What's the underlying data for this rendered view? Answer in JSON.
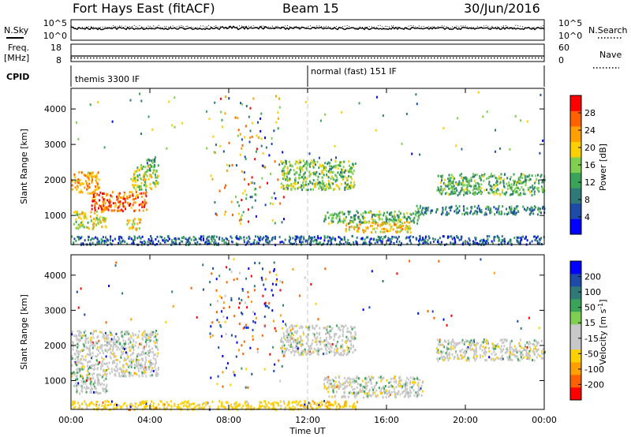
{
  "header": {
    "radar": "Fort Hays East (fitACF)",
    "beam": "Beam 15",
    "date": "30/Jun/2016"
  },
  "noise_panel": {
    "left_label": "N.Sky",
    "right_label": "N.Search",
    "left_ticks": [
      "10^5",
      "10^0"
    ],
    "right_ticks": [
      "10^5",
      "10^0"
    ]
  },
  "freq_panel": {
    "left_label_1": "Freq.",
    "left_label_2": "[MHz]",
    "right_label": "Nave",
    "left_ticks": [
      "18",
      "8"
    ],
    "right_ticks": [
      "60",
      "0"
    ]
  },
  "cpid": {
    "label": "CPID",
    "segments": [
      {
        "name": "themis 3300 IF",
        "start_hour": 0
      },
      {
        "name": "normal (fast) 151 IF",
        "start_hour": 12
      }
    ]
  },
  "x_axis": {
    "label": "Time UT",
    "ticks": [
      "00:00",
      "04:00",
      "08:00",
      "12:00",
      "16:00",
      "20:00",
      "00:00"
    ],
    "range_hours": [
      0,
      24
    ]
  },
  "colors": {
    "noise_trace": "#000000",
    "cpid_divider": "#c8c8c8"
  },
  "chart_data": [
    {
      "type": "heatmap",
      "quantity": "Power",
      "ylabel": "Slant Range [km]",
      "yticks": [
        "1000",
        "2000",
        "3000",
        "4000"
      ],
      "ylim": [
        180,
        4580
      ],
      "xlim": [
        0,
        24
      ],
      "colorbar": {
        "label": "Power [dB]",
        "ticks": [
          "4",
          "8",
          "12",
          "16",
          "20",
          "24",
          "28"
        ],
        "range": [
          0,
          30
        ],
        "colors": [
          "#0000ff",
          "#1e4aa8",
          "#2f7a78",
          "#3aa35a",
          "#7fcf50",
          "#ffd000",
          "#ffa000",
          "#ff6000",
          "#ff0000"
        ]
      },
      "features": [
        {
          "t_start": 0.0,
          "t_end": 1.4,
          "range_low": 1650,
          "range_high": 2250,
          "intensity": 22
        },
        {
          "t_start": 1.0,
          "t_end": 3.8,
          "range_low": 1150,
          "range_high": 1700,
          "intensity": 26
        },
        {
          "t_start": 3.0,
          "t_end": 4.4,
          "range_low": 1750,
          "range_high": 2450,
          "intensity": 16
        },
        {
          "t_start": 0.1,
          "t_end": 1.8,
          "range_low": 650,
          "range_high": 1150,
          "intensity": 18
        },
        {
          "t_start": 2.8,
          "t_end": 3.5,
          "range_low": 600,
          "range_high": 950,
          "intensity": 20
        },
        {
          "t_start": 3.8,
          "t_end": 4.3,
          "range_low": 2250,
          "range_high": 2700,
          "intensity": 10
        },
        {
          "t_start": 10.6,
          "t_end": 14.4,
          "range_low": 1750,
          "range_high": 2600,
          "intensity": 14
        },
        {
          "t_start": 12.8,
          "t_end": 17.8,
          "range_low": 800,
          "range_high": 1150,
          "intensity": 12
        },
        {
          "t_start": 13.8,
          "t_end": 17.2,
          "range_low": 550,
          "range_high": 850,
          "intensity": 20
        },
        {
          "t_start": 18.5,
          "t_end": 24.0,
          "range_low": 1600,
          "range_high": 2200,
          "intensity": 12
        },
        {
          "t_start": 17.5,
          "t_end": 24.0,
          "range_low": 1050,
          "range_high": 1300,
          "intensity": 8
        },
        {
          "t_start": 0.0,
          "t_end": 24.0,
          "range_low": 200,
          "range_high": 450,
          "intensity": 6
        }
      ]
    },
    {
      "type": "heatmap",
      "quantity": "Velocity",
      "ylabel": "Slant Range [km]",
      "yticks": [
        "1000",
        "2000",
        "3000",
        "4000"
      ],
      "ylim": [
        180,
        4580
      ],
      "xlim": [
        0,
        24
      ],
      "colorbar": {
        "label": "Velocity [m s-1]",
        "ticks": [
          "200",
          "100",
          "50",
          "15",
          "-15",
          "-50",
          "-100",
          "-200"
        ],
        "range": [
          -250,
          250
        ],
        "colors": [
          "#0000ff",
          "#1e4aa8",
          "#2f7a78",
          "#3aa35a",
          "#7fcf50",
          "#c8c8c8",
          "#c8c8c8",
          "#ffd000",
          "#ffa000",
          "#ff6000",
          "#ff0000"
        ]
      },
      "features": [
        {
          "t_start": 0.0,
          "t_end": 4.4,
          "range_low": 1150,
          "range_high": 2450,
          "velocity": 0
        },
        {
          "t_start": 0.1,
          "t_end": 1.8,
          "range_low": 650,
          "range_high": 1150,
          "velocity": 5
        },
        {
          "t_start": 10.6,
          "t_end": 14.4,
          "range_low": 1750,
          "range_high": 2600,
          "velocity": 0
        },
        {
          "t_start": 12.8,
          "t_end": 17.8,
          "range_low": 550,
          "range_high": 1150,
          "velocity": 0
        },
        {
          "t_start": 18.5,
          "t_end": 24.0,
          "range_low": 1600,
          "range_high": 2200,
          "velocity": 0
        },
        {
          "t_start": 11.5,
          "t_end": 14.5,
          "range_low": 200,
          "range_high": 450,
          "velocity": -40
        },
        {
          "t_start": 0.0,
          "t_end": 11.5,
          "range_low": 200,
          "range_high": 450,
          "velocity": -30
        }
      ]
    }
  ]
}
